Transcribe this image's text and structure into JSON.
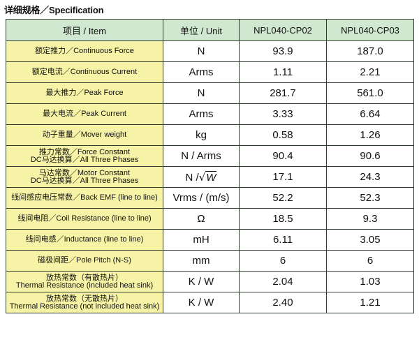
{
  "heading": "详细规格／Specification",
  "table": {
    "headers": {
      "item": "项目 / Item",
      "unit": "单位 / Unit",
      "model1": "NPL040-CP02",
      "model2": "NPL040-CP03"
    },
    "rows": [
      {
        "label": "额定推力／Continuous Force",
        "unit": "N",
        "v1": "93.9",
        "v2": "187.0"
      },
      {
        "label": "额定电流／Continuous Current",
        "unit": "Arms",
        "v1": "1.11",
        "v2": "2.21"
      },
      {
        "label": "最大推力／Peak Force",
        "unit": "N",
        "v1": "281.7",
        "v2": "561.0"
      },
      {
        "label": "最大电流／Peak Current",
        "unit": "Arms",
        "v1": "3.33",
        "v2": "6.64"
      },
      {
        "label": "动子重量／Mover weight",
        "unit": "kg",
        "v1": "0.58",
        "v2": "1.26"
      },
      {
        "label": "推力常数／Force Constant",
        "label2": "DC马达换算／All Three Phases",
        "unit": "N / Arms",
        "v1": "90.4",
        "v2": "90.6"
      },
      {
        "label": "马达常数／Motor Constant",
        "label2": "DC马达换算／All Three Phases",
        "unit_prefix": "N /",
        "unit_sqrt": "W",
        "v1": "17.1",
        "v2": "24.3"
      },
      {
        "label": "线间感应电压常数／Back EMF (line to line)",
        "unit": "Vrms / (m/s)",
        "v1": "52.2",
        "v2": "52.3"
      },
      {
        "label": "线间电阻／Coil Resistance (line to line)",
        "unit": "Ω",
        "v1": "18.5",
        "v2": "9.3"
      },
      {
        "label": "线间电感／Inductance (line to line)",
        "unit": "mH",
        "v1": "6.11",
        "v2": "3.05"
      },
      {
        "label": "磁极间距／Pole Pitch (N-S)",
        "unit": "mm",
        "v1": "6",
        "v2": "6"
      },
      {
        "label": "放热常数（有散热片）",
        "label2": "Thermal Resistance (included heat sink)",
        "unit": "K / W",
        "v1": "2.04",
        "v2": "1.03"
      },
      {
        "label": "放热常数（无散热片）",
        "label2": "Thermal Resistance (not included heat sink)",
        "unit": "K / W",
        "v1": "2.40",
        "v2": "1.21"
      }
    ]
  }
}
